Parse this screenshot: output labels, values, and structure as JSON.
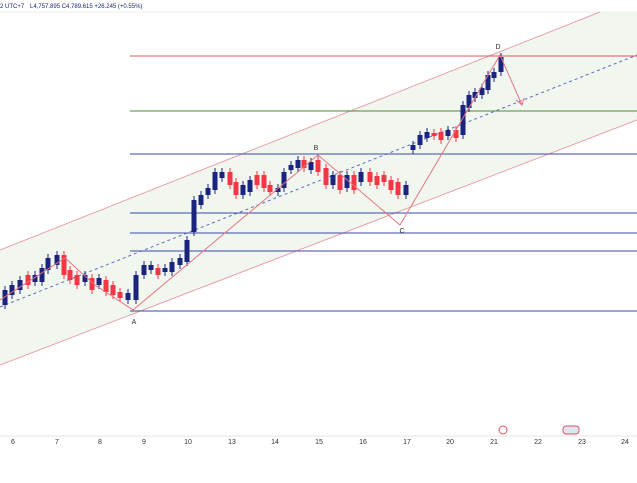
{
  "header": {
    "timezone": "2 UTC+7",
    "ohlc": "L4,757.895 C4,789.615 +26.245 (+0.55%)"
  },
  "pattern_labels": [
    "A",
    "B",
    "C",
    "D"
  ],
  "x_axis_labels": [
    "6",
    "7",
    "8",
    "9",
    "10",
    "13",
    "14",
    "15",
    "16",
    "17",
    "20",
    "21",
    "22",
    "23",
    "24"
  ]
}
